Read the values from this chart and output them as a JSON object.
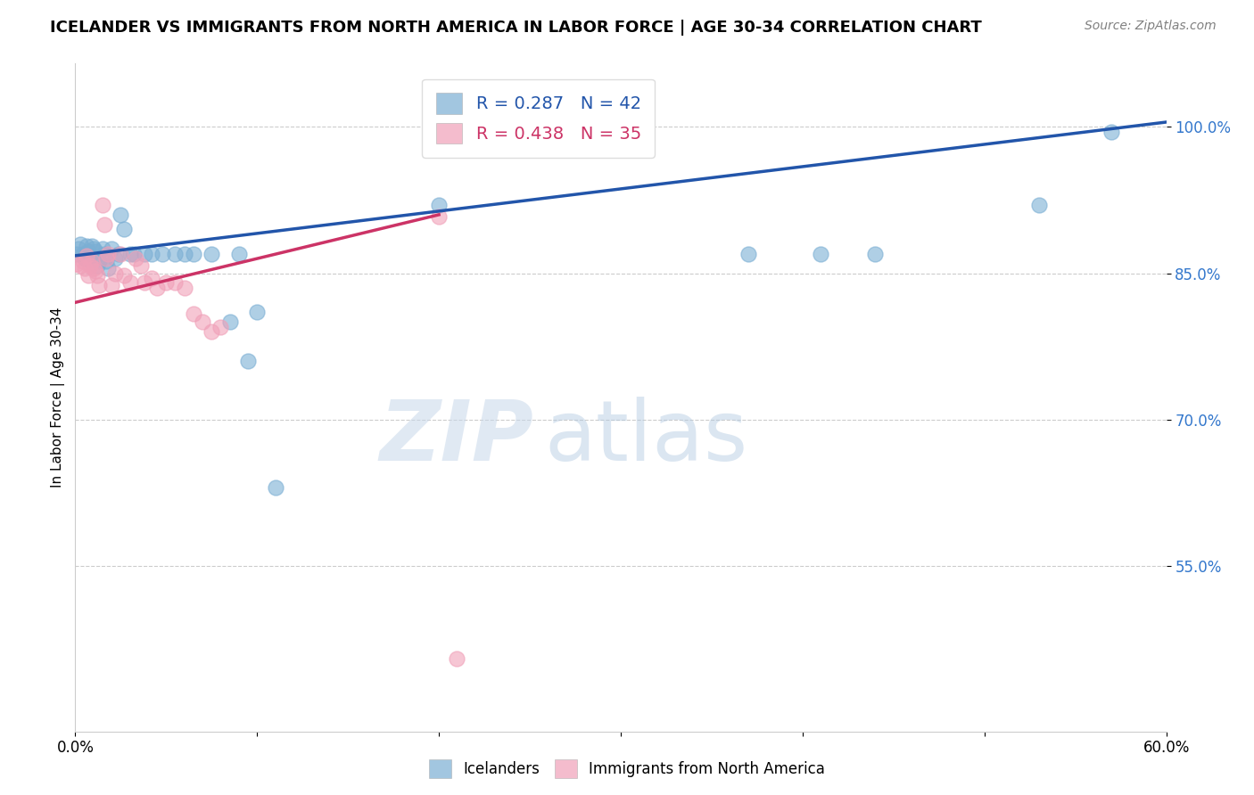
{
  "title": "ICELANDER VS IMMIGRANTS FROM NORTH AMERICA IN LABOR FORCE | AGE 30-34 CORRELATION CHART",
  "source": "Source: ZipAtlas.com",
  "ylabel": "In Labor Force | Age 30-34",
  "xlim": [
    0.0,
    0.6
  ],
  "ylim": [
    0.38,
    1.065
  ],
  "yticks": [
    0.55,
    0.7,
    0.85,
    1.0
  ],
  "ytick_labels": [
    "55.0%",
    "70.0%",
    "85.0%",
    "100.0%"
  ],
  "xticks": [
    0.0,
    0.1,
    0.2,
    0.3,
    0.4,
    0.5,
    0.6
  ],
  "xtick_labels": [
    "0.0%",
    "",
    "",
    "",
    "",
    "",
    "60.0%"
  ],
  "blue_color": "#7bafd4",
  "pink_color": "#f0a0b8",
  "blue_line_color": "#2255aa",
  "pink_line_color": "#cc3366",
  "R_blue": 0.287,
  "N_blue": 42,
  "R_pink": 0.438,
  "N_pink": 35,
  "legend_label_blue": "Icelanders",
  "legend_label_pink": "Immigrants from North America",
  "watermark_zip": "ZIP",
  "watermark_atlas": "atlas",
  "blue_x": [
    0.001,
    0.002,
    0.003,
    0.004,
    0.005,
    0.006,
    0.007,
    0.008,
    0.009,
    0.01,
    0.011,
    0.012,
    0.013,
    0.015,
    0.016,
    0.017,
    0.018,
    0.02,
    0.022,
    0.024,
    0.025,
    0.027,
    0.03,
    0.032,
    0.038,
    0.042,
    0.048,
    0.055,
    0.06,
    0.065,
    0.075,
    0.09,
    0.2,
    0.37,
    0.41,
    0.44,
    0.53,
    0.57,
    0.085,
    0.095,
    0.1,
    0.11
  ],
  "blue_y": [
    0.87,
    0.875,
    0.88,
    0.87,
    0.865,
    0.878,
    0.872,
    0.868,
    0.878,
    0.875,
    0.872,
    0.858,
    0.862,
    0.875,
    0.87,
    0.862,
    0.855,
    0.875,
    0.865,
    0.87,
    0.91,
    0.895,
    0.87,
    0.87,
    0.87,
    0.87,
    0.87,
    0.87,
    0.87,
    0.87,
    0.87,
    0.87,
    0.92,
    0.87,
    0.87,
    0.87,
    0.92,
    0.995,
    0.8,
    0.76,
    0.81,
    0.63
  ],
  "pink_x": [
    0.001,
    0.003,
    0.004,
    0.005,
    0.006,
    0.007,
    0.008,
    0.009,
    0.01,
    0.011,
    0.012,
    0.013,
    0.015,
    0.016,
    0.017,
    0.018,
    0.02,
    0.022,
    0.025,
    0.027,
    0.03,
    0.033,
    0.036,
    0.038,
    0.042,
    0.045,
    0.05,
    0.055,
    0.06,
    0.065,
    0.07,
    0.075,
    0.08,
    0.2,
    0.21
  ],
  "pink_y": [
    0.86,
    0.858,
    0.862,
    0.855,
    0.868,
    0.848,
    0.858,
    0.862,
    0.855,
    0.852,
    0.848,
    0.838,
    0.92,
    0.9,
    0.865,
    0.87,
    0.838,
    0.85,
    0.87,
    0.848,
    0.84,
    0.865,
    0.858,
    0.84,
    0.845,
    0.835,
    0.84,
    0.84,
    0.835,
    0.808,
    0.8,
    0.79,
    0.795,
    0.908,
    0.455
  ],
  "blue_line_x": [
    0.0,
    0.6
  ],
  "blue_line_y": [
    0.868,
    1.005
  ],
  "pink_line_x": [
    0.0,
    0.2
  ],
  "pink_line_y": [
    0.82,
    0.91
  ]
}
